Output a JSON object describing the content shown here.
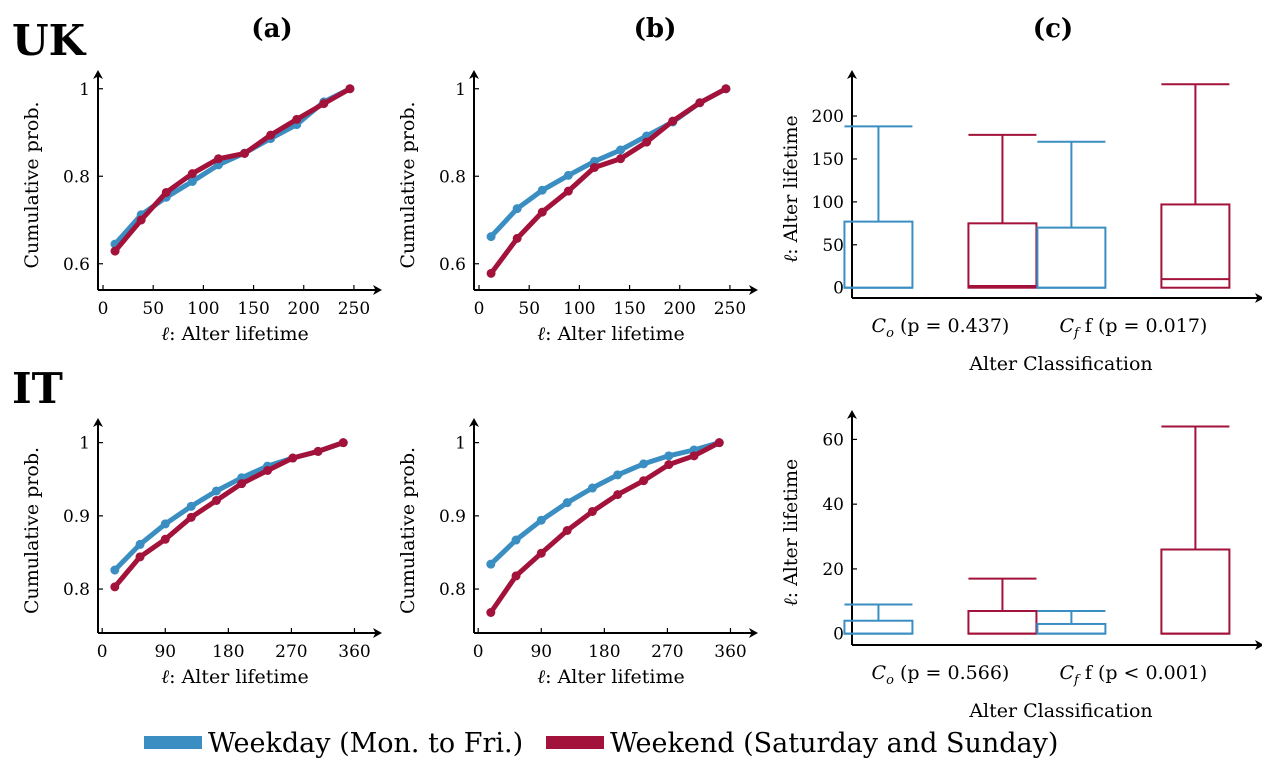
{
  "panel_labels": [
    "(a)",
    "(b)",
    "(c)"
  ],
  "row_labels": [
    "UK",
    "IT"
  ],
  "colors": {
    "weekday": "#3a8ec2",
    "weekend": "#a3123a"
  },
  "legend": [
    {
      "key": "weekday",
      "label": "Weekday (Mon. to Fri.)"
    },
    {
      "key": "weekend",
      "label": "Weekend (Saturday and Sunday)"
    }
  ],
  "chart_data": [
    {
      "id": "uk-a",
      "type": "line",
      "xlabel": "ℓ: Alter lifetime",
      "ylabel": "Cumulative prob.",
      "xlim": [
        -5,
        268
      ],
      "ylim": [
        0.54,
        1.02
      ],
      "xticks": [
        0,
        50,
        100,
        150,
        200,
        250
      ],
      "yticks": [
        0.6,
        0.8,
        1
      ],
      "ytick_labels": [
        "0.6",
        "0.8",
        "1"
      ],
      "series": [
        {
          "key": "weekday",
          "x": [
            12,
            38,
            63,
            89,
            115,
            141,
            167,
            193,
            220,
            246
          ],
          "y": [
            0.645,
            0.712,
            0.752,
            0.788,
            0.826,
            0.853,
            0.886,
            0.918,
            0.97,
            1.0
          ]
        },
        {
          "key": "weekend",
          "x": [
            12,
            38,
            63,
            89,
            115,
            141,
            167,
            193,
            220,
            246
          ],
          "y": [
            0.629,
            0.7,
            0.763,
            0.806,
            0.84,
            0.852,
            0.894,
            0.93,
            0.966,
            1.0
          ]
        }
      ]
    },
    {
      "id": "uk-b",
      "type": "line",
      "xlabel": "ℓ: Alter lifetime",
      "ylabel": "Cumulative prob.",
      "xlim": [
        -5,
        268
      ],
      "ylim": [
        0.54,
        1.02
      ],
      "xticks": [
        0,
        50,
        100,
        150,
        200,
        250
      ],
      "yticks": [
        0.6,
        0.8,
        1
      ],
      "ytick_labels": [
        "0.6",
        "0.8",
        "1"
      ],
      "series": [
        {
          "key": "weekday",
          "x": [
            12,
            38,
            63,
            89,
            115,
            141,
            167,
            193,
            220,
            246
          ],
          "y": [
            0.662,
            0.726,
            0.768,
            0.802,
            0.834,
            0.86,
            0.892,
            0.924,
            0.968,
            1.0
          ]
        },
        {
          "key": "weekend",
          "x": [
            12,
            38,
            63,
            89,
            115,
            141,
            167,
            193,
            220,
            246
          ],
          "y": [
            0.578,
            0.658,
            0.718,
            0.766,
            0.82,
            0.84,
            0.878,
            0.926,
            0.968,
            1.0
          ]
        }
      ]
    },
    {
      "id": "uk-c",
      "type": "box",
      "xlabel": "Alter Classification",
      "ylabel": "ℓ: Alter lifetime",
      "ylim": [
        -12,
        242
      ],
      "yticks": [
        0,
        50,
        100,
        150,
        200
      ],
      "categories": [
        "𝒞ₒ (p = 0.437)",
        "𝒞_f (p = 0.017)"
      ],
      "boxes": [
        {
          "key": "weekday",
          "cat": 0,
          "lower": 0,
          "q1": 0,
          "median": 0,
          "q3": 77,
          "upper": 188
        },
        {
          "key": "weekend",
          "cat": 0,
          "lower": 0,
          "q1": 0,
          "median": 2,
          "q3": 75,
          "upper": 178
        },
        {
          "key": "weekday",
          "cat": 1,
          "lower": 0,
          "q1": 0,
          "median": 0,
          "q3": 70,
          "upper": 170
        },
        {
          "key": "weekend",
          "cat": 1,
          "lower": 0,
          "q1": 0,
          "median": 10,
          "q3": 97,
          "upper": 237
        }
      ]
    },
    {
      "id": "it-a",
      "type": "line",
      "xlabel": "ℓ: Alter lifetime",
      "ylabel": "Cumulative prob.",
      "xlim": [
        -6,
        385
      ],
      "ylim": [
        0.74,
        1.02
      ],
      "xticks": [
        0,
        90,
        180,
        270,
        360
      ],
      "yticks": [
        0.8,
        0.9,
        1
      ],
      "ytick_labels": [
        "0.8",
        "0.9",
        "1"
      ],
      "series": [
        {
          "key": "weekday",
          "x": [
            18,
            54,
            90,
            127,
            163,
            199,
            236,
            272,
            308,
            344
          ],
          "y": [
            0.826,
            0.861,
            0.889,
            0.913,
            0.934,
            0.952,
            0.968,
            0.979,
            0.988,
            1.0
          ]
        },
        {
          "key": "weekend",
          "x": [
            18,
            54,
            90,
            127,
            163,
            199,
            236,
            272,
            308,
            344
          ],
          "y": [
            0.803,
            0.844,
            0.868,
            0.898,
            0.921,
            0.944,
            0.962,
            0.979,
            0.988,
            1.0
          ]
        }
      ]
    },
    {
      "id": "it-b",
      "type": "line",
      "xlabel": "ℓ: Alter lifetime",
      "ylabel": "Cumulative prob.",
      "xlim": [
        -6,
        385
      ],
      "ylim": [
        0.74,
        1.02
      ],
      "xticks": [
        0,
        90,
        180,
        270,
        360
      ],
      "yticks": [
        0.8,
        0.9,
        1
      ],
      "ytick_labels": [
        "0.8",
        "0.9",
        "1"
      ],
      "series": [
        {
          "key": "weekday",
          "x": [
            18,
            54,
            90,
            127,
            163,
            199,
            236,
            272,
            308,
            344
          ],
          "y": [
            0.834,
            0.867,
            0.894,
            0.918,
            0.938,
            0.956,
            0.971,
            0.982,
            0.99,
            1.0
          ]
        },
        {
          "key": "weekend",
          "x": [
            18,
            54,
            90,
            127,
            163,
            199,
            236,
            272,
            308,
            344
          ],
          "y": [
            0.768,
            0.818,
            0.849,
            0.88,
            0.906,
            0.929,
            0.948,
            0.97,
            0.982,
            1.0
          ]
        }
      ]
    },
    {
      "id": "it-c",
      "type": "box",
      "xlabel": "Alter Classification",
      "ylabel": "ℓ: Alter lifetime",
      "ylim": [
        -3.5,
        66
      ],
      "yticks": [
        0,
        20,
        40,
        60
      ],
      "categories": [
        "𝒞ₒ (p = 0.566)",
        "𝒞_f (p < 0.001)"
      ],
      "boxes": [
        {
          "key": "weekday",
          "cat": 0,
          "lower": 0,
          "q1": 0,
          "median": 0,
          "q3": 4,
          "upper": 9
        },
        {
          "key": "weekend",
          "cat": 0,
          "lower": 0,
          "q1": 0,
          "median": 0,
          "q3": 7,
          "upper": 17
        },
        {
          "key": "weekday",
          "cat": 1,
          "lower": 0,
          "q1": 0,
          "median": 0,
          "q3": 3,
          "upper": 7
        },
        {
          "key": "weekend",
          "cat": 1,
          "lower": 0,
          "q1": 0,
          "median": 0,
          "q3": 26,
          "upper": 64
        }
      ]
    }
  ]
}
